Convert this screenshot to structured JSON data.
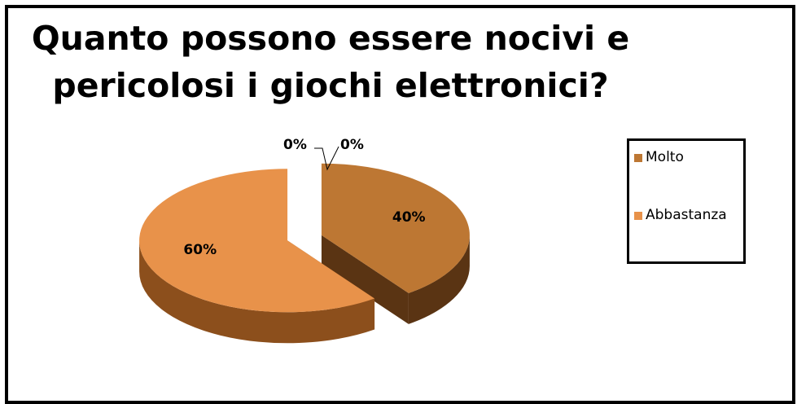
{
  "chart_data": {
    "type": "pie",
    "title": [
      "Quanto possono essere nocivi e",
      "pericolosi i giochi elettronici?"
    ],
    "categories": [
      "Molto",
      "Abbastanza"
    ],
    "series": [
      {
        "values": [
          40,
          60
        ],
        "data_labels": [
          "40%",
          "60%"
        ]
      }
    ],
    "zero_labels": [
      "0%",
      "0%"
    ],
    "legend_position": "right",
    "style": "3d-exploded",
    "colors": {
      "Molto": "#bd7733",
      "Molto_side": "#5a3413",
      "Abbastanza": "#e8924a",
      "Abbastanza_side": "#8c4f1c"
    }
  }
}
